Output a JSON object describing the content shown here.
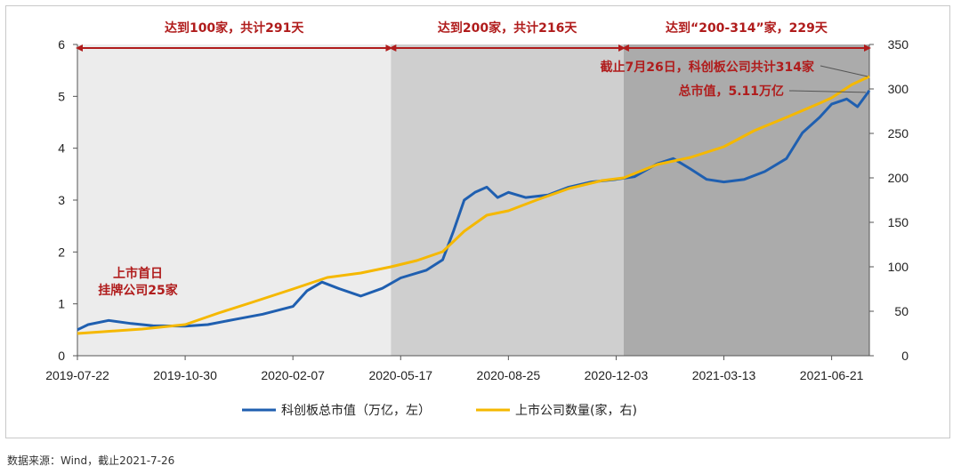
{
  "chart_data": {
    "type": "line",
    "x_ticks": [
      "2019-07-22",
      "2019-10-30",
      "2020-02-07",
      "2020-05-17",
      "2020-08-25",
      "2020-12-03",
      "2021-03-13",
      "2021-06-21"
    ],
    "x_range": [
      "2019-07-22",
      "2021-07-26"
    ],
    "y_left_ticks": [
      0,
      1,
      2,
      3,
      4,
      5,
      6
    ],
    "y_left_range": [
      0,
      6
    ],
    "y_right_ticks": [
      0,
      50,
      100,
      150,
      200,
      250,
      300,
      350
    ],
    "y_right_range": [
      0,
      350
    ],
    "grid": false,
    "legend_position": "bottom",
    "regions": [
      {
        "start": "2019-07-22",
        "end": "2020-05-08",
        "label": "达到100家，共计291天",
        "color": "#ececec"
      },
      {
        "start": "2020-05-08",
        "end": "2020-12-10",
        "label": "达到200家，共计216天",
        "color": "#cfcfcf"
      },
      {
        "start": "2020-12-10",
        "end": "2021-07-26",
        "label": "达到“200-314”家，229天",
        "color": "#ababab"
      }
    ],
    "series": [
      {
        "name": "科创板总市值（万亿，左）",
        "axis": "left",
        "color": "#1f5fb0",
        "points": [
          [
            "2019-07-22",
            0.5
          ],
          [
            "2019-08-01",
            0.6
          ],
          [
            "2019-08-20",
            0.68
          ],
          [
            "2019-09-10",
            0.62
          ],
          [
            "2019-09-30",
            0.58
          ],
          [
            "2019-10-30",
            0.57
          ],
          [
            "2019-11-20",
            0.6
          ],
          [
            "2019-12-15",
            0.7
          ],
          [
            "2020-01-10",
            0.8
          ],
          [
            "2020-02-07",
            0.95
          ],
          [
            "2020-02-20",
            1.25
          ],
          [
            "2020-03-05",
            1.42
          ],
          [
            "2020-03-20",
            1.3
          ],
          [
            "2020-04-10",
            1.15
          ],
          [
            "2020-04-30",
            1.3
          ],
          [
            "2020-05-17",
            1.5
          ],
          [
            "2020-06-10",
            1.65
          ],
          [
            "2020-06-25",
            1.85
          ],
          [
            "2020-07-05",
            2.4
          ],
          [
            "2020-07-15",
            3.0
          ],
          [
            "2020-07-25",
            3.15
          ],
          [
            "2020-08-05",
            3.25
          ],
          [
            "2020-08-15",
            3.05
          ],
          [
            "2020-08-25",
            3.15
          ],
          [
            "2020-09-10",
            3.05
          ],
          [
            "2020-10-01",
            3.1
          ],
          [
            "2020-10-20",
            3.25
          ],
          [
            "2020-11-10",
            3.35
          ],
          [
            "2020-12-03",
            3.4
          ],
          [
            "2020-12-20",
            3.45
          ],
          [
            "2021-01-10",
            3.7
          ],
          [
            "2021-01-25",
            3.8
          ],
          [
            "2021-02-10",
            3.6
          ],
          [
            "2021-02-25",
            3.4
          ],
          [
            "2021-03-13",
            3.35
          ],
          [
            "2021-04-01",
            3.4
          ],
          [
            "2021-04-20",
            3.55
          ],
          [
            "2021-05-10",
            3.8
          ],
          [
            "2021-05-25",
            4.3
          ],
          [
            "2021-06-10",
            4.6
          ],
          [
            "2021-06-21",
            4.85
          ],
          [
            "2021-07-05",
            4.95
          ],
          [
            "2021-07-15",
            4.8
          ],
          [
            "2021-07-26",
            5.11
          ]
        ]
      },
      {
        "name": "上市公司数量(家，右)",
        "axis": "right",
        "color": "#f5b800",
        "points": [
          [
            "2019-07-22",
            25
          ],
          [
            "2019-08-15",
            27
          ],
          [
            "2019-09-20",
            30
          ],
          [
            "2019-10-30",
            35
          ],
          [
            "2019-11-30",
            48
          ],
          [
            "2019-12-31",
            60
          ],
          [
            "2020-02-07",
            75
          ],
          [
            "2020-03-10",
            88
          ],
          [
            "2020-04-10",
            93
          ],
          [
            "2020-05-08",
            100
          ],
          [
            "2020-06-01",
            107
          ],
          [
            "2020-06-25",
            117
          ],
          [
            "2020-07-15",
            140
          ],
          [
            "2020-08-05",
            158
          ],
          [
            "2020-08-25",
            163
          ],
          [
            "2020-09-20",
            175
          ],
          [
            "2020-10-20",
            188
          ],
          [
            "2020-11-20",
            197
          ],
          [
            "2020-12-10",
            200
          ],
          [
            "2021-01-10",
            215
          ],
          [
            "2021-02-10",
            223
          ],
          [
            "2021-03-13",
            235
          ],
          [
            "2021-04-10",
            253
          ],
          [
            "2021-05-10",
            268
          ],
          [
            "2021-06-10",
            284
          ],
          [
            "2021-06-21",
            290
          ],
          [
            "2021-07-10",
            305
          ],
          [
            "2021-07-26",
            314
          ]
        ]
      }
    ],
    "annotations": [
      {
        "text": "截止7月26日，科创板公司共计314家"
      },
      {
        "text": "总市值，5.11万亿"
      },
      {
        "text_line1": "上市首日",
        "text_line2": "挂牌公司25家"
      }
    ]
  },
  "source_note": "数据来源：Wind，截止2021-7-26"
}
